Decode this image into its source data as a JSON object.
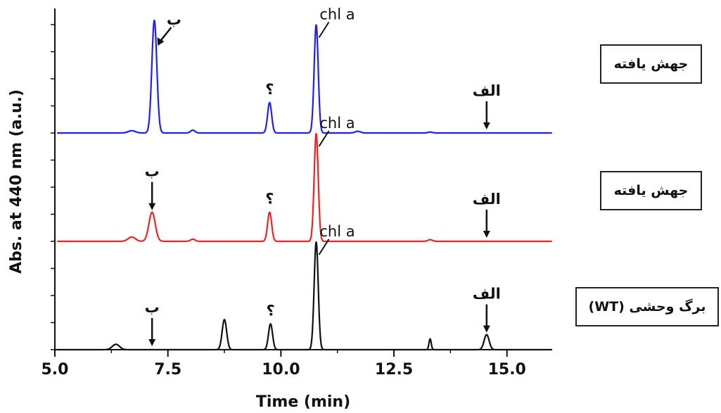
{
  "chart_data": {
    "type": "line",
    "xlabel": "Time (min)",
    "ylabel": "Abs. at 440 nm (a.u.)",
    "xlim": [
      5.0,
      16.0
    ],
    "x_ticks": [
      "5.0",
      "7.5",
      "10.0",
      "12.5",
      "15.0"
    ],
    "series": [
      {
        "name": "جهش یافته",
        "color": "#1f1ff0",
        "baseline": 2,
        "peaks": [
          {
            "x": 6.7,
            "h": 0.02,
            "w": 0.08
          },
          {
            "x": 7.2,
            "h": 1.0,
            "w": 0.055
          },
          {
            "x": 8.05,
            "h": 0.025,
            "w": 0.05
          },
          {
            "x": 9.75,
            "h": 0.27,
            "w": 0.045
          },
          {
            "x": 10.78,
            "h": 0.96,
            "w": 0.045
          },
          {
            "x": 11.7,
            "h": 0.015,
            "w": 0.06
          },
          {
            "x": 13.3,
            "h": 0.008,
            "w": 0.05
          }
        ],
        "annotations": [
          {
            "text": "ب",
            "peak_x": 7.2,
            "kind": "peak-arrow"
          },
          {
            "text": "؟",
            "peak_x": 9.75,
            "kind": "label"
          },
          {
            "text": "chl a",
            "peak_x": 10.78,
            "kind": "label"
          },
          {
            "text": "الف",
            "peak_x": 14.55,
            "kind": "down-arrow"
          }
        ]
      },
      {
        "name": "جهش یافته",
        "color": "#ee2222",
        "baseline": 1,
        "peaks": [
          {
            "x": 6.7,
            "h": 0.04,
            "w": 0.08
          },
          {
            "x": 7.15,
            "h": 0.27,
            "w": 0.07
          },
          {
            "x": 8.05,
            "h": 0.02,
            "w": 0.05
          },
          {
            "x": 9.75,
            "h": 0.27,
            "w": 0.045
          },
          {
            "x": 10.78,
            "h": 1.0,
            "w": 0.045
          },
          {
            "x": 13.3,
            "h": 0.015,
            "w": 0.05
          }
        ],
        "annotations": [
          {
            "text": "ب",
            "peak_x": 7.15,
            "kind": "down-arrow"
          },
          {
            "text": "؟",
            "peak_x": 9.75,
            "kind": "label"
          },
          {
            "text": "chl a",
            "peak_x": 10.78,
            "kind": "label"
          },
          {
            "text": "الف",
            "peak_x": 14.55,
            "kind": "down-arrow"
          }
        ]
      },
      {
        "name": "برگ وحشی (WT)",
        "color": "#111111",
        "baseline": 0,
        "peaks": [
          {
            "x": 6.35,
            "h": 0.05,
            "w": 0.08
          },
          {
            "x": 8.75,
            "h": 0.28,
            "w": 0.05
          },
          {
            "x": 9.77,
            "h": 0.24,
            "w": 0.045
          },
          {
            "x": 10.78,
            "h": 1.0,
            "w": 0.045
          },
          {
            "x": 13.3,
            "h": 0.1,
            "w": 0.025
          },
          {
            "x": 14.55,
            "h": 0.14,
            "w": 0.055
          }
        ],
        "annotations": [
          {
            "text": "ب",
            "peak_x": 7.15,
            "kind": "down-arrow"
          },
          {
            "text": "؟",
            "peak_x": 9.77,
            "kind": "label"
          },
          {
            "text": "chl a",
            "peak_x": 10.78,
            "kind": "label"
          },
          {
            "text": "الف",
            "peak_x": 14.55,
            "kind": "down-arrow"
          }
        ]
      }
    ],
    "legend": [
      "جهش یافته",
      "جهش یافته",
      "برگ وحشی (WT)"
    ]
  }
}
